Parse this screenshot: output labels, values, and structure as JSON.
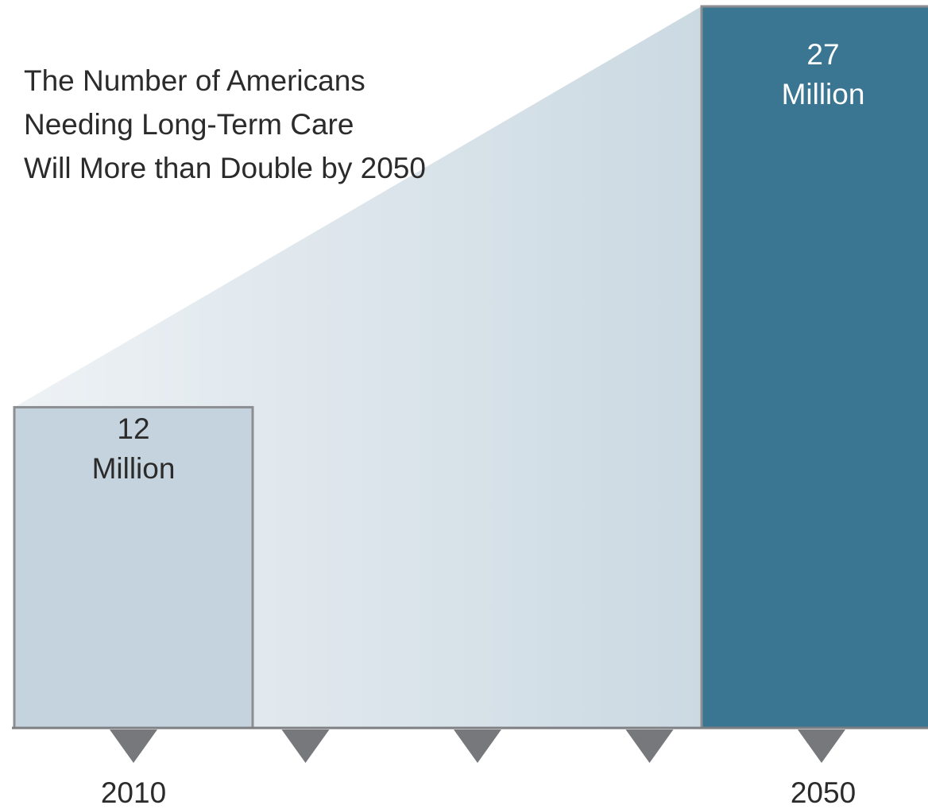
{
  "chart_data": {
    "type": "bar",
    "title_lines": [
      "The Number of Americans",
      "Needing Long-Term Care",
      "Will More than Double by 2050"
    ],
    "categories": [
      "2010",
      "2050"
    ],
    "values": [
      12,
      27
    ],
    "value_labels": [
      {
        "number": "12",
        "unit": "Million"
      },
      {
        "number": "27",
        "unit": "Million"
      }
    ],
    "x_tick_count": 5,
    "ylim": [
      0,
      27
    ],
    "colors": {
      "bar_2010_fill": "#c5d3de",
      "bar_2050_fill": "#3a7592",
      "bar_stroke": "#8c8e92",
      "growth_wedge_start": "#eef2f5",
      "growth_wedge_end": "#cbd9e2",
      "baseline": "#7d7f83",
      "tick_marker": "#76787c"
    }
  }
}
